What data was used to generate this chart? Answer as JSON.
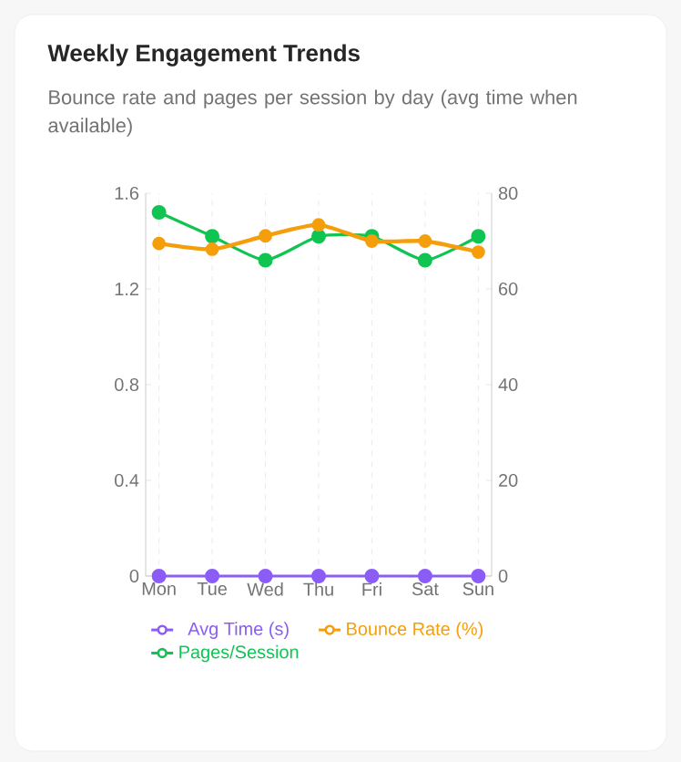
{
  "chart_data": {
    "type": "line",
    "title": "Weekly Engagement Trends",
    "subtitle": "Bounce rate and pages per session by day (avg time when available)",
    "categories": [
      "Mon",
      "Tue",
      "Wed",
      "Thu",
      "Fri",
      "Sat",
      "Sun"
    ],
    "series": [
      {
        "name": "Avg Time (s)",
        "color": "#8b5cf6",
        "values": [
          0,
          0,
          0,
          0,
          0,
          0,
          0
        ]
      },
      {
        "name": "Bounce Rate (%)",
        "color": "#f59e0b",
        "axis": "y2",
        "values": [
          69.5,
          68.3,
          71.1,
          73.4,
          70,
          70,
          67.7
        ]
      },
      {
        "name": "Pages/Session",
        "color": "#10c452",
        "values": [
          1.52,
          1.42,
          1.32,
          1.42,
          1.42,
          1.32,
          1.42
        ]
      }
    ],
    "ylim": [
      0,
      1.6
    ],
    "yticks": [
      0,
      0.4,
      0.8,
      1.2,
      1.6
    ],
    "y2lim": [
      0,
      80
    ],
    "y2ticks": [
      0,
      20,
      40,
      60,
      80
    ],
    "grid": "x",
    "legend": "bottom",
    "marker": "circle",
    "line_style": "solid"
  }
}
